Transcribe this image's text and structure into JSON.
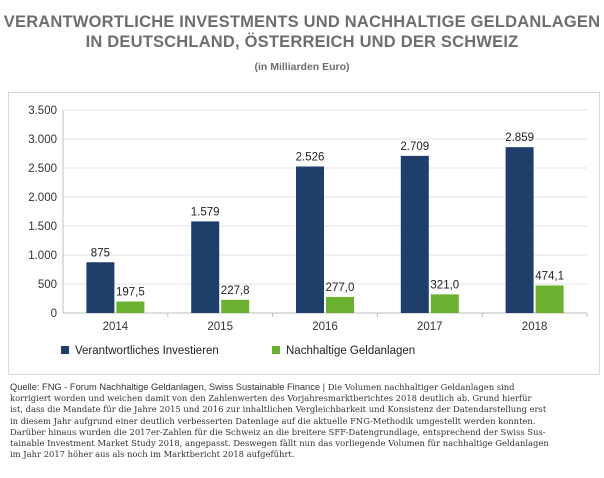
{
  "chart_data": {
    "type": "bar",
    "title_line1": "VERANTWORTLICHE INVESTMENTS UND NACHHALTIGE GELDANLAGEN",
    "title_line2": "IN DEUTSCHLAND, ÖSTERREICH UND DER SCHWEIZ",
    "subtitle": "(in Milliarden Euro)",
    "categories": [
      "2014",
      "2015",
      "2016",
      "2017",
      "2018"
    ],
    "series": [
      {
        "name": "Verantwortliches Investieren",
        "color": "#1f3f6b",
        "values": [
          875,
          1579,
          2526,
          2709,
          2859
        ],
        "labels": [
          "875",
          "1.579",
          "2.526",
          "2.709",
          "2.859"
        ]
      },
      {
        "name": "Nachhaltige Geldanlagen",
        "color": "#6bb12f",
        "values": [
          197.5,
          227.8,
          277.0,
          321.0,
          474.1
        ],
        "labels": [
          "197,5",
          "227,8",
          "277,0",
          "321,0",
          "474,1"
        ]
      }
    ],
    "ylim": [
      0,
      3500
    ],
    "yticks": [
      0,
      500,
      1000,
      1500,
      2000,
      2500,
      3000,
      3500
    ],
    "ytick_labels": [
      "0",
      "500",
      "1.000",
      "1.500",
      "2.000",
      "2.500",
      "3.000",
      "3.500"
    ],
    "grid": true,
    "legend_position": "bottom-left"
  },
  "footer": {
    "source_lead": "Quelle: FNG - Forum Nachhaltige Geldanlagen, Swiss Sustainable Finance  |",
    "line1_rest": "Die Volumen nachhaltiger Geldanlagen sind",
    "line2": "korrigiert worden und weichen damit von den Zahlenwerten des Vorjahresmarktberichtes 2018 deutlich ab. Grund hierfür",
    "line3": "ist, dass die Mandate für die Jahre 2015 und 2016 zur inhaltlichen Vergleichbarkeit und Konsistenz der Datendarstellung erst",
    "line4": "in diesem Jahr aufgrund einer deutlich verbesserten Datenlage auf die aktuelle FNG-Methodik umgestellt werden konnten.",
    "line5": "Darüber hinaus wurden die 2017er-Zahlen für die Schweiz an die breitere SFF-Datengrundlage, entsprechend der Swiss Sus-",
    "line6": "tainable Investment Market Study 2018, angepasst. Deswegen fällt nun das vorliegende Volumen für nachhaltige Geldanlagen",
    "line7": "im Jahr 2017 höher aus als noch im Marktbericht 2018 aufgeführt."
  }
}
